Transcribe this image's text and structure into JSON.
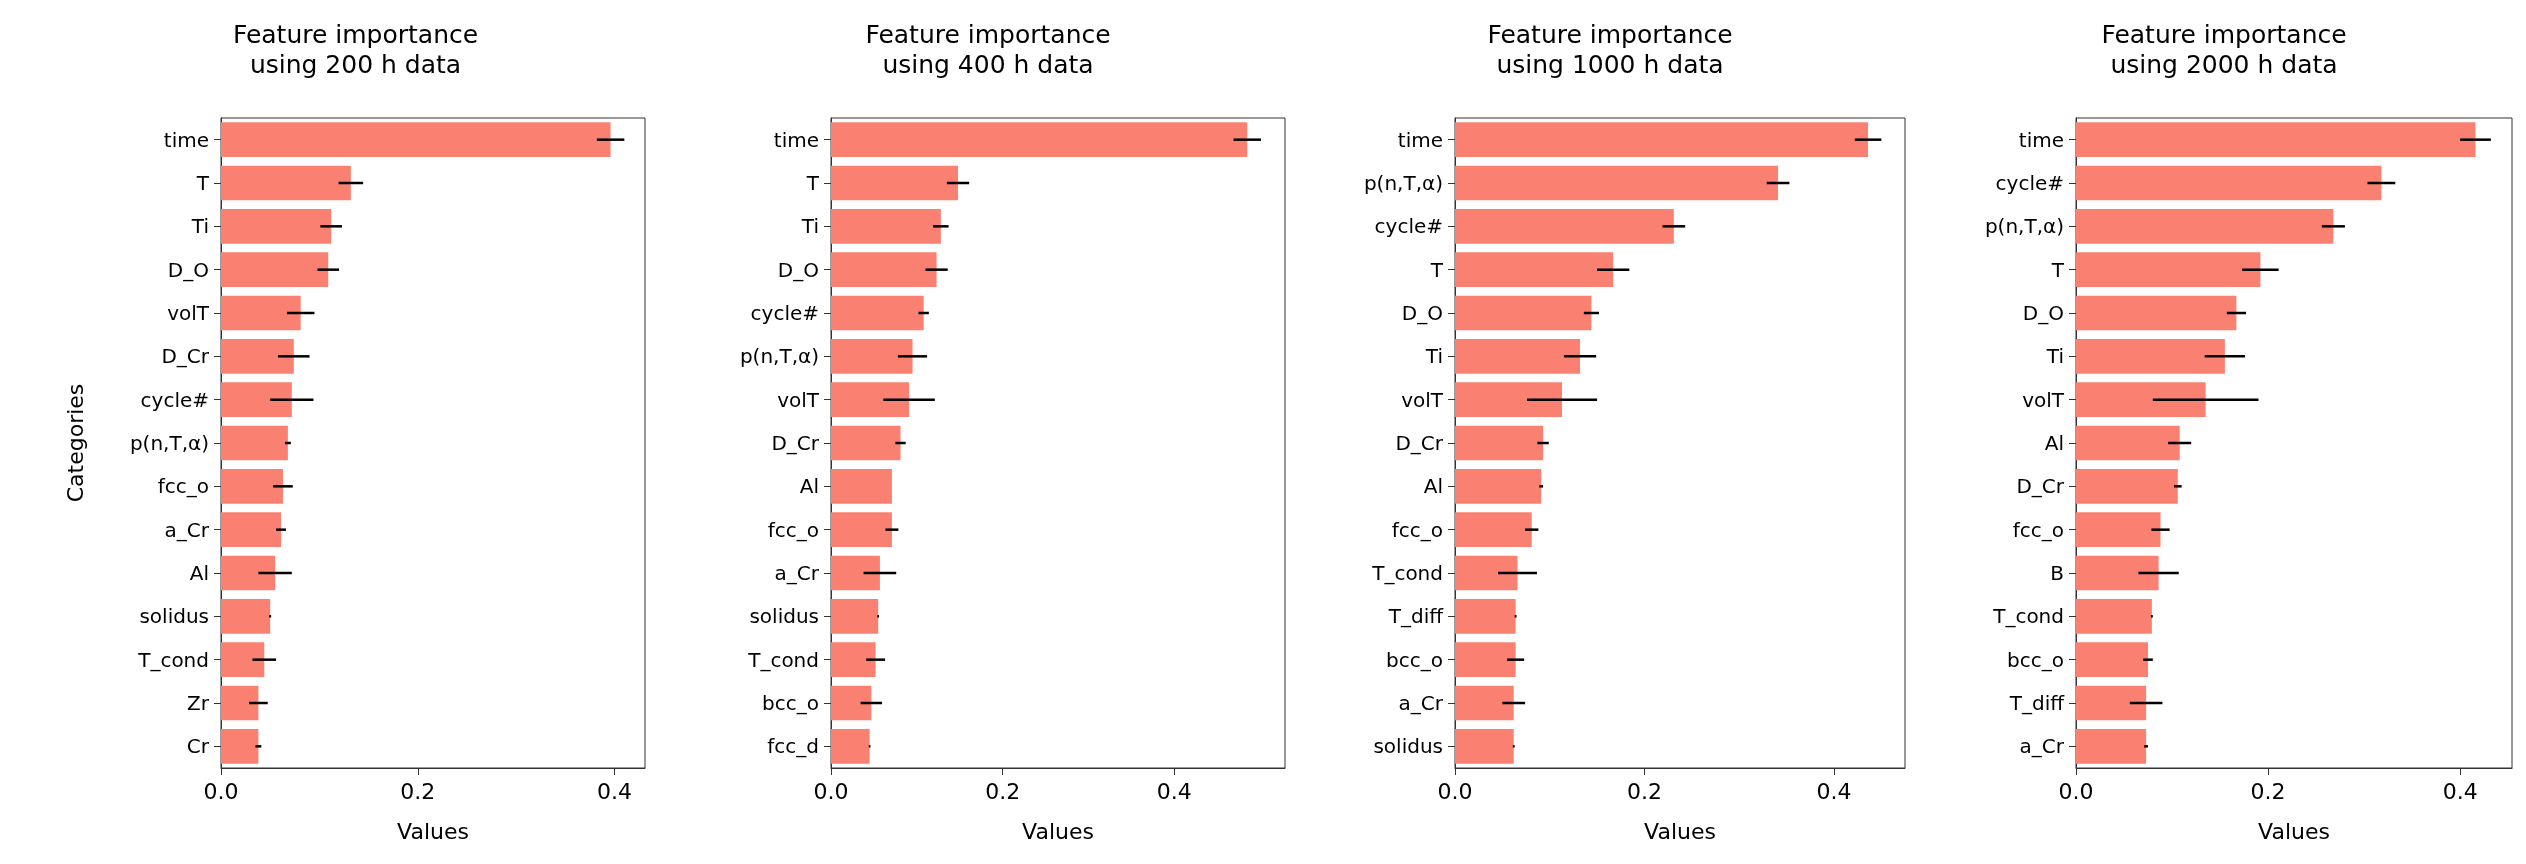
{
  "chart_data": [
    {
      "type": "bar",
      "orientation": "horizontal",
      "title": "Feature importance\nusing 200 h data",
      "xlabel": "Values",
      "ylabel": "Categories",
      "categories": [
        "time",
        "T",
        "Ti",
        "D_O",
        "volT",
        "D_Cr",
        "cycle#",
        "p(n,T,α)",
        "fcc_o",
        "a_Cr",
        "Al",
        "solidus",
        "T_cond",
        "Zr",
        "Cr"
      ],
      "series": [
        {
          "color": "#fa8072",
          "values": [
            0.396,
            0.132,
            0.112,
            0.109,
            0.081,
            0.074,
            0.072,
            0.068,
            0.063,
            0.061,
            0.055,
            0.05,
            0.044,
            0.038,
            0.038
          ],
          "errors": [
            0.014,
            0.0125,
            0.011,
            0.011,
            0.014,
            0.016,
            0.022,
            0.003,
            0.01,
            0.005,
            0.017,
            0.001,
            0.012,
            0.0095,
            0.003
          ]
        }
      ],
      "xlim": [
        0,
        0.431
      ],
      "xticks": [
        {
          "value": 0,
          "label": "0.0"
        },
        {
          "value": 0.2,
          "label": "0.2"
        },
        {
          "value": 0.4,
          "label": "0.4"
        }
      ],
      "grid": false
    },
    {
      "type": "bar",
      "orientation": "horizontal",
      "title": "Feature importance\nusing 400 h data",
      "xlabel": "Values",
      "categories": [
        "time",
        "T",
        "Ti",
        "D_O",
        "cycle#",
        "p(n,T,α)",
        "volT",
        "D_Cr",
        "Al",
        "fcc_o",
        "a_Cr",
        "solidus",
        "T_cond",
        "bcc_o",
        "fcc_d"
      ],
      "series": [
        {
          "color": "#fa8072",
          "values": [
            0.485,
            0.148,
            0.128,
            0.123,
            0.108,
            0.095,
            0.091,
            0.081,
            0.071,
            0.071,
            0.057,
            0.055,
            0.052,
            0.047,
            0.045
          ],
          "errors": [
            0.016,
            0.013,
            0.009,
            0.013,
            0.006,
            0.017,
            0.03,
            0.006,
            null,
            0.0075,
            0.019,
            0.001,
            0.011,
            0.0125,
            0.001
          ]
        }
      ],
      "xlim": [
        0,
        0.529
      ],
      "xticks": [
        {
          "value": 0,
          "label": "0.0"
        },
        {
          "value": 0.2,
          "label": "0.2"
        },
        {
          "value": 0.4,
          "label": "0.4"
        }
      ],
      "grid": false
    },
    {
      "type": "bar",
      "orientation": "horizontal",
      "title": "Feature importance\nusing 1000 h data",
      "xlabel": "Values",
      "categories": [
        "time",
        "p(n,T,α)",
        "cycle#",
        "T",
        "D_O",
        "Ti",
        "volT",
        "D_Cr",
        "Al",
        "fcc_o",
        "T_cond",
        "T_diff",
        "bcc_o",
        "a_Cr",
        "solidus"
      ],
      "series": [
        {
          "color": "#fa8072",
          "values": [
            0.436,
            0.341,
            0.231,
            0.167,
            0.144,
            0.132,
            0.113,
            0.093,
            0.091,
            0.081,
            0.066,
            0.064,
            0.064,
            0.062,
            0.062
          ],
          "errors": [
            0.014,
            0.012,
            0.012,
            0.017,
            0.008,
            0.017,
            0.037,
            0.006,
            0.002,
            0.007,
            0.0205,
            0.001,
            0.009,
            0.012,
            0.001
          ]
        }
      ],
      "xlim": [
        0,
        0.475
      ],
      "xticks": [
        {
          "value": 0,
          "label": "0.0"
        },
        {
          "value": 0.2,
          "label": "0.2"
        },
        {
          "value": 0.4,
          "label": "0.4"
        }
      ],
      "grid": false
    },
    {
      "type": "bar",
      "orientation": "horizontal",
      "title": "Feature importance\nusing 2000 h data",
      "xlabel": "Values",
      "categories": [
        "time",
        "cycle#",
        "p(n,T,α)",
        "T",
        "D_O",
        "Ti",
        "volT",
        "Al",
        "D_Cr",
        "fcc_o",
        "B",
        "T_cond",
        "bcc_o",
        "T_diff",
        "a_Cr"
      ],
      "series": [
        {
          "color": "#fa8072",
          "values": [
            0.416,
            0.318,
            0.268,
            0.192,
            0.167,
            0.155,
            0.135,
            0.108,
            0.106,
            0.088,
            0.086,
            0.079,
            0.075,
            0.073,
            0.073
          ],
          "errors": [
            0.016,
            0.0145,
            0.012,
            0.019,
            0.01,
            0.021,
            0.055,
            0.012,
            0.004,
            0.0095,
            0.021,
            0.001,
            0.005,
            0.017,
            0.002
          ]
        }
      ],
      "xlim": [
        0,
        0.454
      ],
      "xticks": [
        {
          "value": 0,
          "label": "0.0"
        },
        {
          "value": 0.2,
          "label": "0.2"
        },
        {
          "value": 0.4,
          "label": "0.4"
        }
      ],
      "grid": false
    }
  ]
}
